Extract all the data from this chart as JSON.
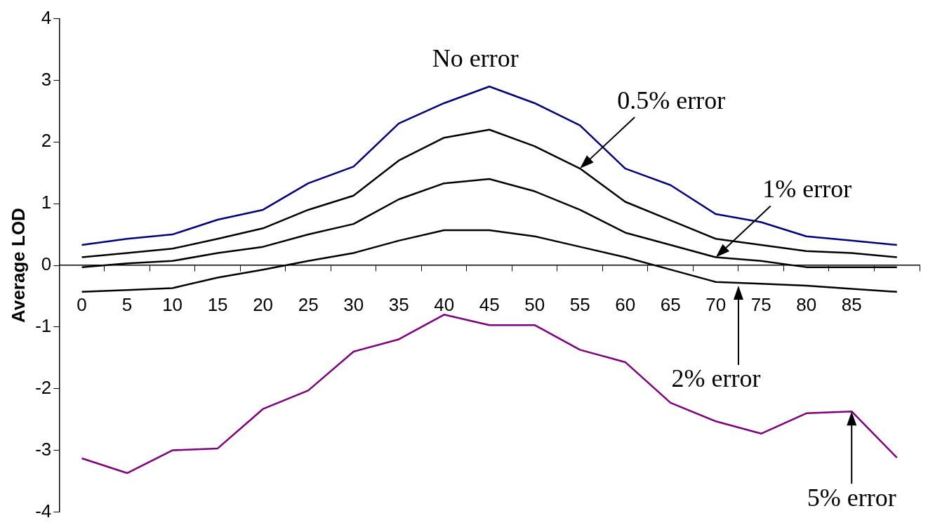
{
  "chart_data": {
    "type": "line",
    "ylabel": "Average LOD",
    "categories": [
      "0",
      "5",
      "10",
      "15",
      "20",
      "25",
      "30",
      "35",
      "40",
      "45",
      "50",
      "55",
      "60",
      "65",
      "70",
      "75",
      "80",
      "85",
      null
    ],
    "ylim": [
      -4,
      4
    ],
    "yticks": [
      -4,
      -3,
      -2,
      -1,
      0,
      1,
      2,
      3,
      4
    ],
    "grid": false,
    "legend": false,
    "marker": "none",
    "line_style": "solid",
    "series": [
      {
        "color": "#000080",
        "values": [
          0.33,
          0.43,
          0.5,
          0.74,
          0.9,
          1.33,
          1.6,
          2.3,
          2.63,
          2.9,
          2.63,
          2.27,
          1.57,
          1.3,
          0.83,
          0.7,
          0.47,
          0.4,
          0.33
        ]
      },
      {
        "color": "#000000",
        "values": [
          0.13,
          0.2,
          0.27,
          0.43,
          0.6,
          0.9,
          1.13,
          1.7,
          2.07,
          2.2,
          1.93,
          1.57,
          1.03,
          0.73,
          0.43,
          0.33,
          0.23,
          0.2,
          0.13
        ]
      },
      {
        "color": "#000000",
        "values": [
          -0.03,
          0.03,
          0.07,
          0.2,
          0.3,
          0.5,
          0.67,
          1.07,
          1.33,
          1.4,
          1.2,
          0.9,
          0.53,
          0.33,
          0.13,
          0.07,
          -0.03,
          -0.03,
          -0.03
        ]
      },
      {
        "color": "#000000",
        "values": [
          -0.43,
          -0.4,
          -0.37,
          -0.2,
          -0.07,
          0.07,
          0.2,
          0.4,
          0.57,
          0.57,
          0.47,
          0.3,
          0.13,
          -0.07,
          -0.27,
          -0.3,
          -0.33,
          -0.38,
          -0.43
        ]
      },
      {
        "color": "#800080",
        "values": [
          -3.13,
          -3.37,
          -3.0,
          -2.97,
          -2.33,
          -2.03,
          -1.4,
          -1.2,
          -0.8,
          -0.97,
          -0.97,
          -1.37,
          -1.57,
          -2.23,
          -2.53,
          -2.73,
          -2.4,
          -2.37,
          -3.12
        ]
      }
    ],
    "annotations": [
      {
        "text": "No error",
        "x": "45",
        "y": 2.9
      },
      {
        "text": "0.5% error",
        "x": "55",
        "y": 1.57
      },
      {
        "text": "1% error",
        "x": "70",
        "y": 0.13
      },
      "2% error",
      {
        "text": "5% error",
        "x": "85",
        "y": -2.37
      }
    ]
  }
}
